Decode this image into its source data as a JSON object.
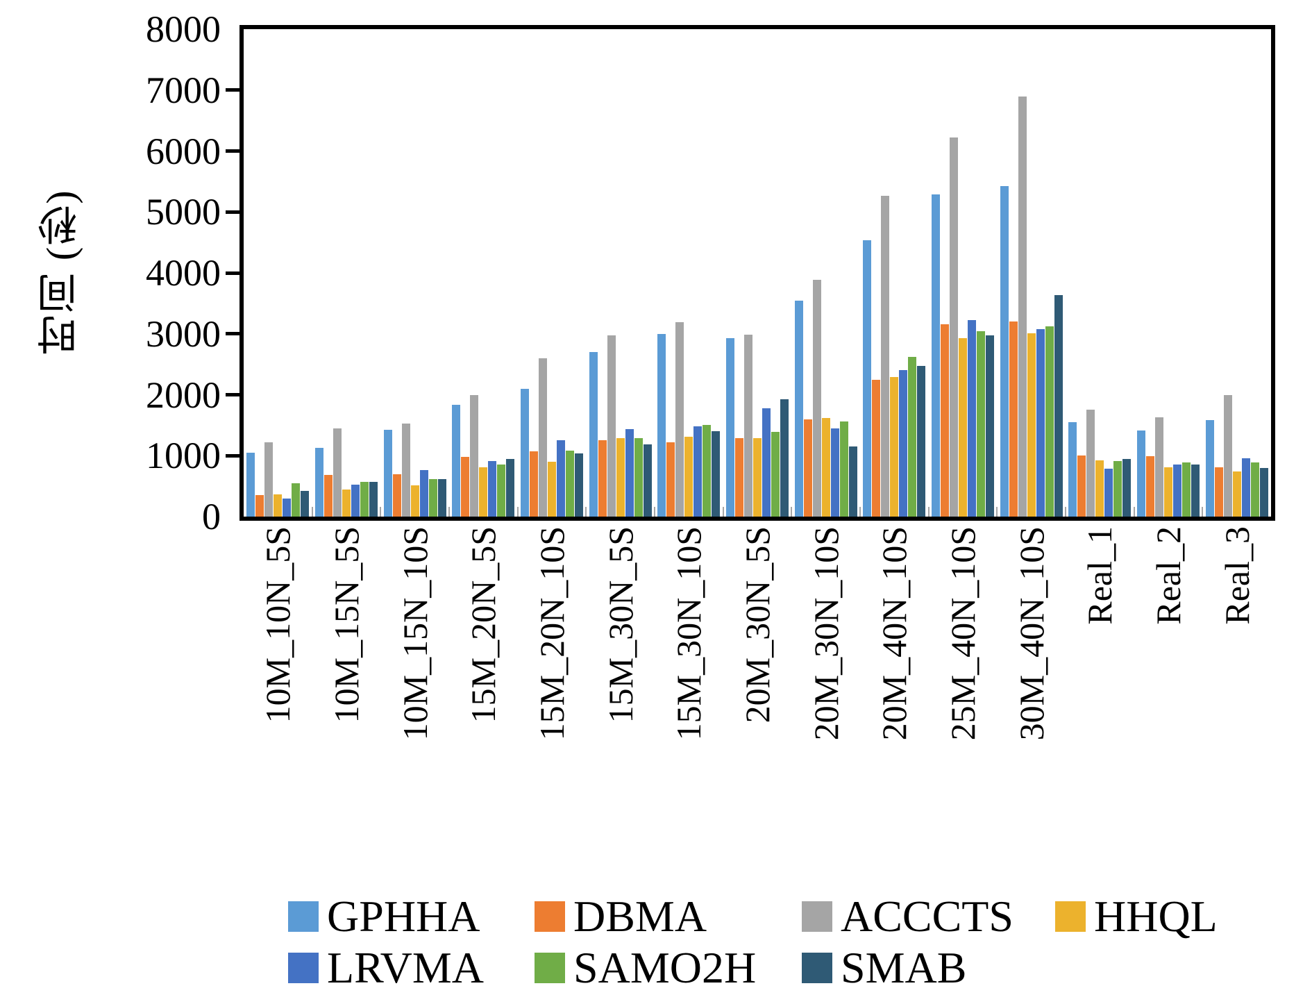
{
  "chart_data": {
    "type": "bar",
    "title": "",
    "xlabel": "",
    "ylabel": "时间 (秒)",
    "ylim": [
      0,
      8000
    ],
    "ytick_step": 1000,
    "yticks": [
      0,
      1000,
      2000,
      3000,
      4000,
      5000,
      6000,
      7000,
      8000
    ],
    "grid": false,
    "legend_position": "bottom",
    "categories": [
      "10M_10N_5S",
      "10M_15N_5S",
      "10M_15N_10S",
      "15M_20N_5S",
      "15M_20N_10S",
      "15M_30N_5S",
      "15M_30N_10S",
      "20M_30N_5S",
      "20M_30N_10S",
      "20M_40N_10S",
      "25M_40N_10S",
      "30M_40N_10S",
      "Real_1",
      "Real_2",
      "Real_3"
    ],
    "series": [
      {
        "name": "GPHHA",
        "color": "#5B9BD5",
        "values": [
          1050,
          1130,
          1430,
          1830,
          2100,
          2700,
          3000,
          2930,
          3540,
          4540,
          5290,
          5430,
          1550,
          1410,
          1580
        ]
      },
      {
        "name": "DBMA",
        "color": "#ED7D31",
        "values": [
          350,
          680,
          700,
          980,
          1070,
          1250,
          1220,
          1290,
          1600,
          2250,
          3160,
          3200,
          1000,
          990,
          810
        ]
      },
      {
        "name": "ACCCTS",
        "color": "#A5A5A5",
        "values": [
          1220,
          1450,
          1530,
          1990,
          2600,
          2970,
          3190,
          2990,
          3890,
          5270,
          6220,
          6890,
          1750,
          1630,
          1990
        ]
      },
      {
        "name": "HHQL",
        "color": "#ECB22D",
        "values": [
          370,
          450,
          510,
          810,
          900,
          1290,
          1310,
          1290,
          1620,
          2290,
          2930,
          3010,
          920,
          810,
          740
        ]
      },
      {
        "name": "LRVMA",
        "color": "#4472C4",
        "values": [
          300,
          520,
          760,
          910,
          1250,
          1440,
          1480,
          1780,
          1450,
          2400,
          3220,
          3080,
          790,
          850,
          960
        ]
      },
      {
        "name": "SAMO2H",
        "color": "#70AD47",
        "values": [
          550,
          570,
          620,
          860,
          1080,
          1290,
          1510,
          1390,
          1560,
          2620,
          3040,
          3120,
          910,
          890,
          890
        ]
      },
      {
        "name": "SMAB",
        "color": "#2F5A75",
        "values": [
          420,
          575,
          620,
          950,
          1040,
          1180,
          1400,
          1930,
          1150,
          2470,
          2980,
          3630,
          950,
          850,
          800
        ]
      }
    ],
    "legend_rows": [
      [
        "GPHHA",
        "DBMA",
        "ACCCTS",
        "HHQL"
      ],
      [
        "LRVMA",
        "SAMO2H",
        "SMAB"
      ]
    ]
  }
}
